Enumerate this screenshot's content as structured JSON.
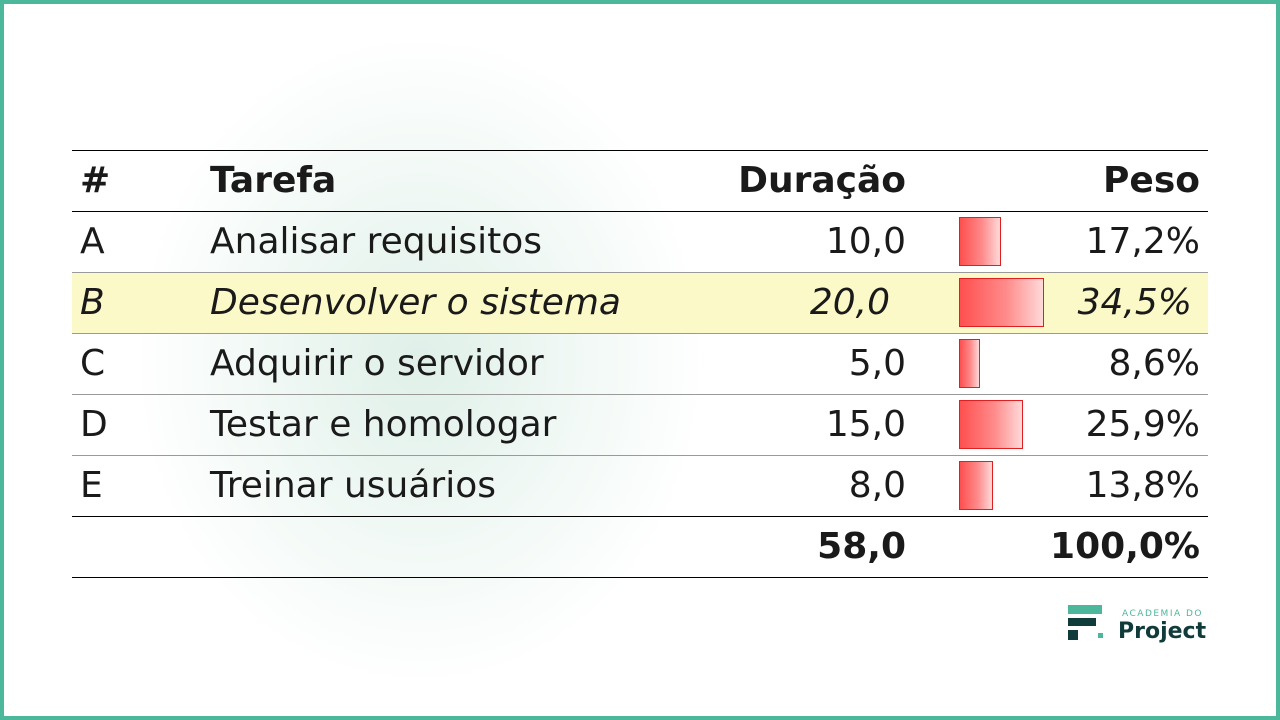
{
  "header": {
    "id": "#",
    "task": "Tarefa",
    "duration": "Duração",
    "weight": "Peso"
  },
  "rows": [
    {
      "id": "A",
      "task": "Analisar requisitos",
      "duration": "10,0",
      "weight": "17,2%",
      "weight_value": 17.2,
      "highlight": false
    },
    {
      "id": "B",
      "task": "Desenvolver o sistema",
      "duration": "20,0",
      "weight": "34,5%",
      "weight_value": 34.5,
      "highlight": true
    },
    {
      "id": "C",
      "task": "Adquirir o servidor",
      "duration": "5,0",
      "weight": "8,6%",
      "weight_value": 8.6,
      "highlight": false
    },
    {
      "id": "D",
      "task": "Testar e homologar",
      "duration": "15,0",
      "weight": "25,9%",
      "weight_value": 25.9,
      "highlight": false
    },
    {
      "id": "E",
      "task": "Treinar usuários",
      "duration": "8,0",
      "weight": "13,8%",
      "weight_value": 13.8,
      "highlight": false
    }
  ],
  "total": {
    "duration": "58,0",
    "weight": "100,0%"
  },
  "colors": {
    "frame": "#4cb79a",
    "highlight": "#fbf9c8",
    "bar": "#ff4f4f",
    "logo_dark": "#0f3b3a"
  },
  "logo": {
    "small": "ACADEMIA DO",
    "big": "Project"
  }
}
